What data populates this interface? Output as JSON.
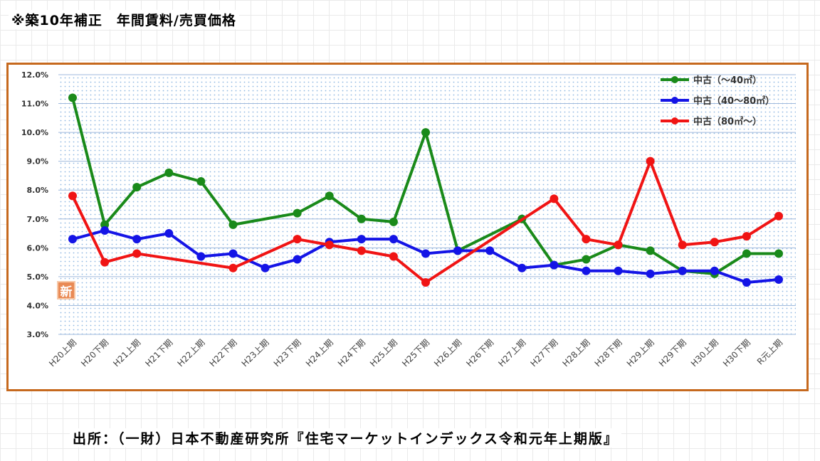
{
  "title": "※築10年補正　年間賃料/売買価格",
  "source": "出所：（一財）日本不動産研究所『住宅マーケットインデックス令和元年上期版』",
  "badge": "新",
  "chart_data": {
    "type": "line",
    "ylim": [
      3.0,
      12.0
    ],
    "yticks": [
      "3.0%",
      "4.0%",
      "5.0%",
      "6.0%",
      "7.0%",
      "8.0%",
      "9.0%",
      "10.0%",
      "11.0%",
      "12.0%"
    ],
    "legend_position": "top-right",
    "grid": true,
    "categories": [
      "H20上期",
      "H20下期",
      "H21上期",
      "H21下期",
      "H22上期",
      "H22下期",
      "H23上期",
      "H23下期",
      "H24上期",
      "H24下期",
      "H25上期",
      "H25下期",
      "H26上期",
      "H26下期",
      "H27上期",
      "H27下期",
      "H28上期",
      "H28下期",
      "H29上期",
      "H29下期",
      "H30上期",
      "H30下期",
      "R元上期"
    ],
    "series": [
      {
        "name": "中古（～40㎡）",
        "color": "#1a8a1a",
        "values": [
          11.2,
          6.8,
          8.1,
          8.6,
          8.3,
          6.8,
          null,
          7.2,
          7.8,
          7.0,
          6.9,
          10.0,
          5.9,
          null,
          7.0,
          5.4,
          5.6,
          6.1,
          5.9,
          5.2,
          5.1,
          5.8,
          5.8
        ]
      },
      {
        "name": "中古（40～80㎡）",
        "color": "#1414e6",
        "values": [
          6.3,
          6.6,
          6.3,
          6.5,
          5.7,
          5.8,
          5.3,
          5.6,
          6.2,
          6.3,
          6.3,
          5.8,
          5.9,
          5.9,
          5.3,
          5.4,
          5.2,
          5.2,
          5.1,
          5.2,
          5.2,
          4.8,
          4.9
        ]
      },
      {
        "name": "中古（80㎡～）",
        "color": "#f01414",
        "values": [
          7.8,
          5.5,
          5.8,
          null,
          null,
          5.3,
          null,
          6.3,
          6.1,
          5.9,
          5.7,
          4.8,
          null,
          null,
          null,
          7.7,
          6.3,
          6.1,
          9.0,
          6.1,
          6.2,
          6.4,
          7.1
        ]
      }
    ]
  }
}
